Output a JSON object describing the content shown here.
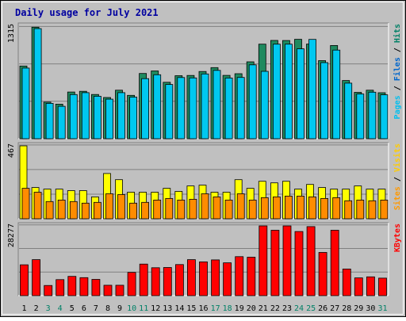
{
  "chart_data": {
    "type": "bar",
    "title": "Daily usage for July 2021",
    "categories": [
      "1",
      "2",
      "3",
      "4",
      "5",
      "6",
      "7",
      "8",
      "9",
      "10",
      "11",
      "12",
      "13",
      "14",
      "15",
      "16",
      "17",
      "18",
      "19",
      "20",
      "21",
      "22",
      "23",
      "24",
      "25",
      "26",
      "27",
      "28",
      "29",
      "30",
      "31"
    ],
    "weekend_days": [
      "3",
      "4",
      "10",
      "11",
      "17",
      "18",
      "24",
      "25",
      "31"
    ],
    "panels": [
      {
        "id": "top",
        "ymax_label": "1315",
        "ymax": 1315,
        "grid": true,
        "legend": [
          {
            "text": "Pages",
            "color": "#00bfef"
          },
          {
            "text": " / ",
            "color": "#000000"
          },
          {
            "text": "Files",
            "color": "#0066cc"
          },
          {
            "text": " / ",
            "color": "#000000"
          },
          {
            "text": "Hits",
            "color": "#008066"
          }
        ],
        "series": [
          {
            "name": "Hits",
            "color": "#1f8a5f",
            "values": [
              849,
              1303,
              428,
              404,
              545,
              554,
              517,
              482,
              567,
              507,
              762,
              792,
              659,
              736,
              739,
              785,
              831,
              740,
              759,
              898,
              1105,
              1148,
              1147,
              1161,
              1106,
              912,
              1089,
              680,
              542,
              567,
              537
            ]
          },
          {
            "name": "Files",
            "color": "#00c8f0",
            "values": [
              825,
              1286,
              413,
              379,
              516,
              538,
              496,
              462,
              538,
              486,
              702,
              747,
              633,
              715,
              710,
              757,
              798,
              709,
              716,
              863,
              787,
              1105,
              1105,
              1050,
              1160,
              889,
              1035,
              649,
              522,
              544,
              513
            ]
          }
        ]
      },
      {
        "id": "middle",
        "ymax_label": "467",
        "ymax": 467,
        "grid": true,
        "legend": [
          {
            "text": "Sites",
            "color": "#ff9900"
          },
          {
            "text": " / ",
            "color": "#000000"
          },
          {
            "text": "Visits",
            "color": "#ffcc00"
          }
        ],
        "series": [
          {
            "name": "Visits",
            "color": "#ffff00",
            "values": [
              467,
              200,
              190,
              190,
              180,
              180,
              140,
              290,
              250,
              170,
              170,
              170,
              195,
              175,
              210,
              215,
              170,
              170,
              250,
              195,
              240,
              230,
              240,
              190,
              220,
              200,
              190,
              190,
              210,
              190,
              190
            ]
          },
          {
            "name": "Sites",
            "color": "#ff8c00",
            "values": [
              195,
              170,
              110,
              120,
              110,
              100,
              105,
              160,
              155,
              100,
              105,
              120,
              130,
              120,
              125,
              160,
              140,
              120,
              160,
              120,
              135,
              140,
              145,
              145,
              140,
              130,
              135,
              115,
              120,
              115,
              120
            ]
          }
        ]
      },
      {
        "id": "bottom",
        "ymax_label": "28277",
        "ymax": 28277,
        "grid": true,
        "legend": [
          {
            "text": "KBytes",
            "color": "#ff0000"
          }
        ],
        "series": [
          {
            "name": "KBytes",
            "color": "#ff0000",
            "values": [
              12500,
              14600,
              4100,
              6500,
              7800,
              7300,
              6600,
              4200,
              4200,
              9400,
              12800,
              11300,
              11400,
              12600,
              14600,
              13700,
              14500,
              13300,
              15800,
              15600,
              28277,
              26500,
              28277,
              26000,
              28000,
              17500,
              26500,
              10800,
              7200,
              7600,
              7100
            ]
          }
        ]
      }
    ]
  }
}
